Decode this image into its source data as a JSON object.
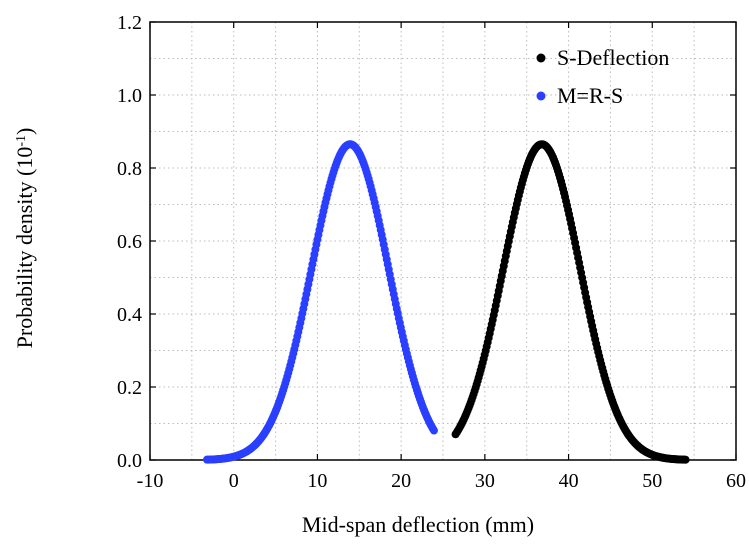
{
  "chart_data": {
    "type": "scatter",
    "title": "",
    "xlabel": "Mid-span deflection (mm)",
    "ylabel_main": "Probability density (10",
    "ylabel_exp": "-1",
    "ylabel_tail": ")",
    "xlim": [
      -10,
      60
    ],
    "ylim": [
      0.0,
      1.2
    ],
    "xticks": [
      -10,
      0,
      10,
      20,
      30,
      40,
      50,
      60
    ],
    "xtick_labels": [
      "-10",
      "0",
      "10",
      "20",
      "30",
      "40",
      "50",
      "60"
    ],
    "yticks": [
      0.0,
      0.2,
      0.4,
      0.6,
      0.8,
      1.0,
      1.2
    ],
    "ytick_labels": [
      "0.0",
      "0.2",
      "0.4",
      "0.6",
      "0.8",
      "1.0",
      "1.2"
    ],
    "grid": true,
    "legend_position": "top-right",
    "series": [
      {
        "name": "S-Deflection",
        "color": "#000000",
        "mean": 36.8,
        "std": 4.6,
        "x_range": [
          26.5,
          54
        ],
        "peak": 0.865
      },
      {
        "name": "M=R-S",
        "color": "#2a3fff",
        "mean": 13.9,
        "std": 4.6,
        "x_range": [
          -3.2,
          24
        ],
        "peak": 0.865
      }
    ]
  }
}
